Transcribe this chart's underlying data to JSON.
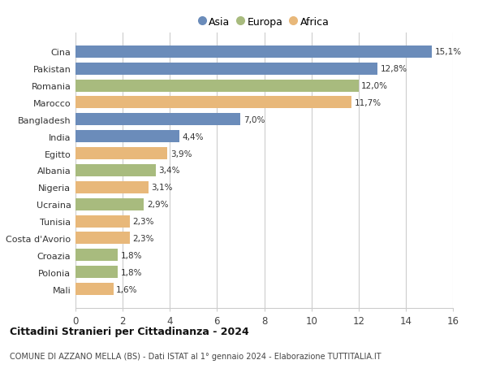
{
  "countries": [
    "Cina",
    "Pakistan",
    "Romania",
    "Marocco",
    "Bangladesh",
    "India",
    "Egitto",
    "Albania",
    "Nigeria",
    "Ucraina",
    "Tunisia",
    "Costa d'Avorio",
    "Croazia",
    "Polonia",
    "Mali"
  ],
  "values": [
    15.1,
    12.8,
    12.0,
    11.7,
    7.0,
    4.4,
    3.9,
    3.4,
    3.1,
    2.9,
    2.3,
    2.3,
    1.8,
    1.8,
    1.6
  ],
  "continents": [
    "Asia",
    "Asia",
    "Europa",
    "Africa",
    "Asia",
    "Asia",
    "Africa",
    "Europa",
    "Africa",
    "Europa",
    "Africa",
    "Africa",
    "Europa",
    "Europa",
    "Africa"
  ],
  "colors": {
    "Asia": "#6b8cba",
    "Europa": "#a8bb7e",
    "Africa": "#e8b87a"
  },
  "legend_labels": [
    "Asia",
    "Europa",
    "Africa"
  ],
  "title": "Cittadini Stranieri per Cittadinanza - 2024",
  "subtitle": "COMUNE DI AZZANO MELLA (BS) - Dati ISTAT al 1° gennaio 2024 - Elaborazione TUTTITALIA.IT",
  "xlim": [
    0,
    16
  ],
  "xticks": [
    0,
    2,
    4,
    6,
    8,
    10,
    12,
    14,
    16
  ],
  "background_color": "#ffffff",
  "grid_color": "#cccccc"
}
